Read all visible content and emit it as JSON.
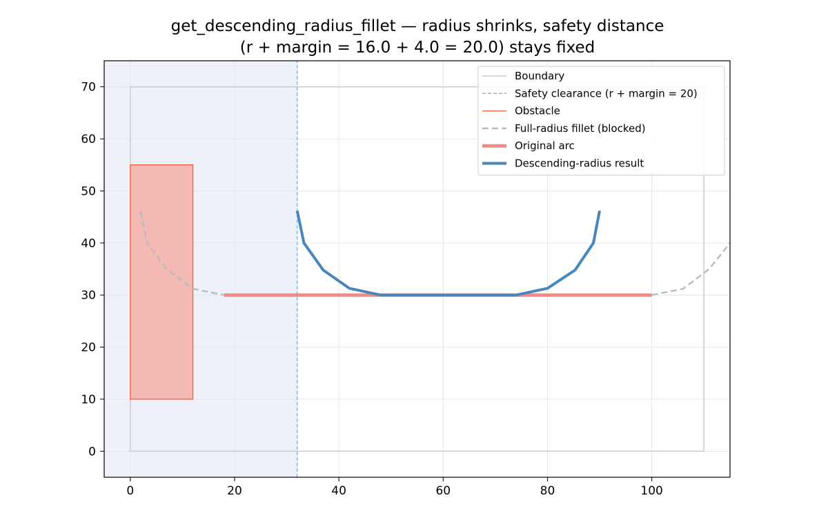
{
  "chart_data": {
    "type": "line",
    "title_line1": "get_descending_radius_fillet — radius shrinks, safety distance",
    "title_line2": "(r + margin = 16.0 + 4.0 = 20.0) stays fixed",
    "xlabel": "",
    "ylabel": "",
    "xlim": [
      -5,
      115
    ],
    "ylim": [
      -5,
      75
    ],
    "x_ticks": [
      0,
      20,
      40,
      60,
      80,
      100
    ],
    "y_ticks": [
      0,
      10,
      20,
      30,
      40,
      50,
      60,
      70
    ],
    "grid": true,
    "legend_position": "upper right",
    "clearance_x": 32,
    "shaded_region": {
      "x0": -5,
      "x1": 32,
      "color": "#eef1f9"
    },
    "series": [
      {
        "key": "boundary",
        "name": "Boundary",
        "color": "#cccccc",
        "style": "solid",
        "width": 1.5,
        "x": [
          0,
          110,
          110,
          0,
          0
        ],
        "y": [
          70,
          70,
          0,
          0,
          70
        ]
      },
      {
        "key": "clearance",
        "name": "Safety clearance (r + margin = 20)",
        "color": "#8eaee0",
        "style": "dashed",
        "width": 1.5,
        "x": [
          32,
          32
        ],
        "y": [
          -5,
          75
        ]
      },
      {
        "key": "obstacle",
        "name": "Obstacle",
        "color": "#f26b4f",
        "fill": "#f3b9b2",
        "style": "solid",
        "width": 1.5,
        "x": [
          0,
          12,
          12,
          0,
          0
        ],
        "y": [
          10,
          10,
          55,
          55,
          10
        ]
      },
      {
        "key": "full_radius",
        "name": "Full-radius fillet (blocked)",
        "color": "#bbbbbb",
        "style": "dashed",
        "width": 2.5,
        "x": [
          2,
          3.2,
          7,
          12,
          18
        ],
        "y": [
          46,
          40,
          35,
          31.2,
          30
        ]
      },
      {
        "key": "full_radius_right",
        "name": "",
        "color": "#bbbbbb",
        "style": "dashed",
        "width": 2.5,
        "x": [
          100,
          106,
          111,
          115
        ],
        "y": [
          30,
          31.2,
          35,
          40
        ]
      },
      {
        "key": "original_arc",
        "name": "Original arc",
        "color": "#f08b86",
        "style": "solid",
        "width": 5,
        "x": [
          18,
          100
        ],
        "y": [
          30,
          30
        ]
      },
      {
        "key": "descending",
        "name": "Descending-radius result",
        "color": "#4a86bc",
        "style": "solid",
        "width": 4,
        "x": [
          32,
          33.3,
          37,
          42,
          48,
          74,
          80,
          85.3,
          88.8,
          90
        ],
        "y": [
          46.2,
          40,
          34.8,
          31.3,
          30,
          30,
          31.3,
          34.8,
          40,
          46.2
        ]
      }
    ],
    "legend_entries": [
      "boundary",
      "clearance",
      "obstacle",
      "full_radius",
      "original_arc",
      "descending"
    ]
  }
}
